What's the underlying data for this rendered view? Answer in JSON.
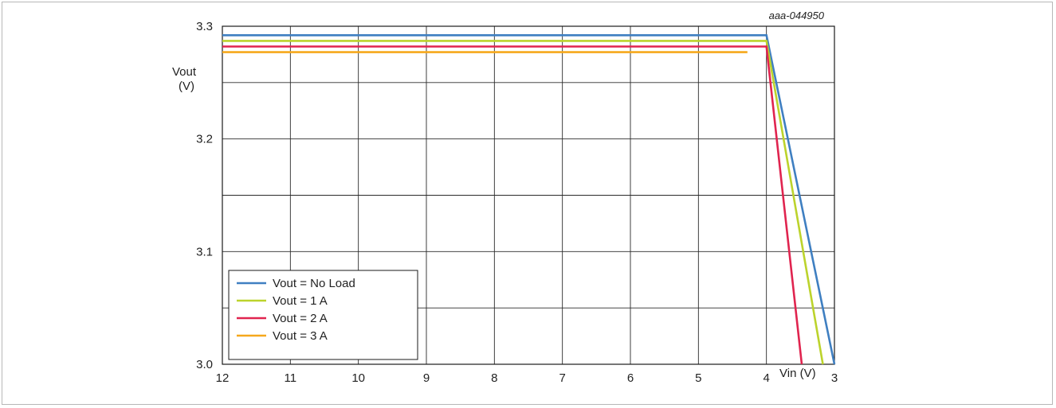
{
  "chart_data": {
    "type": "line",
    "title": "",
    "figure_id": "aaa-044950",
    "xlabel": "Vin (V)",
    "ylabel_line1": "Vout",
    "ylabel_line2": "(V)",
    "xlim": [
      12,
      3
    ],
    "ylim": [
      3.0,
      3.3
    ],
    "x_ticks": [
      12,
      11,
      10,
      9,
      8,
      7,
      6,
      5,
      4,
      3
    ],
    "y_ticks": [
      3.3,
      3.2,
      3.1,
      3.0
    ],
    "y_tick_labels": [
      "3.3",
      "3.2",
      "3.1",
      "3.0"
    ],
    "y_grid_step": 0.05,
    "x_reversed": true,
    "grid": true,
    "legend_position": "bottom-left",
    "series": [
      {
        "name": "Vout = No Load",
        "color": "#3f7fc1",
        "x": [
          12,
          4,
          3
        ],
        "y": [
          3.292,
          3.292,
          3.0
        ]
      },
      {
        "name": "Vout = 1 A",
        "color": "#bcd32c",
        "x": [
          12,
          4,
          3.17
        ],
        "y": [
          3.287,
          3.287,
          3.0
        ]
      },
      {
        "name": "Vout = 2 A",
        "color": "#e0244f",
        "x": [
          12,
          4,
          3.48
        ],
        "y": [
          3.282,
          3.282,
          3.0
        ]
      },
      {
        "name": "Vout = 3 A",
        "color": "#f6a81c",
        "x": [
          12,
          4.28
        ],
        "y": [
          3.277,
          3.277
        ]
      }
    ]
  }
}
